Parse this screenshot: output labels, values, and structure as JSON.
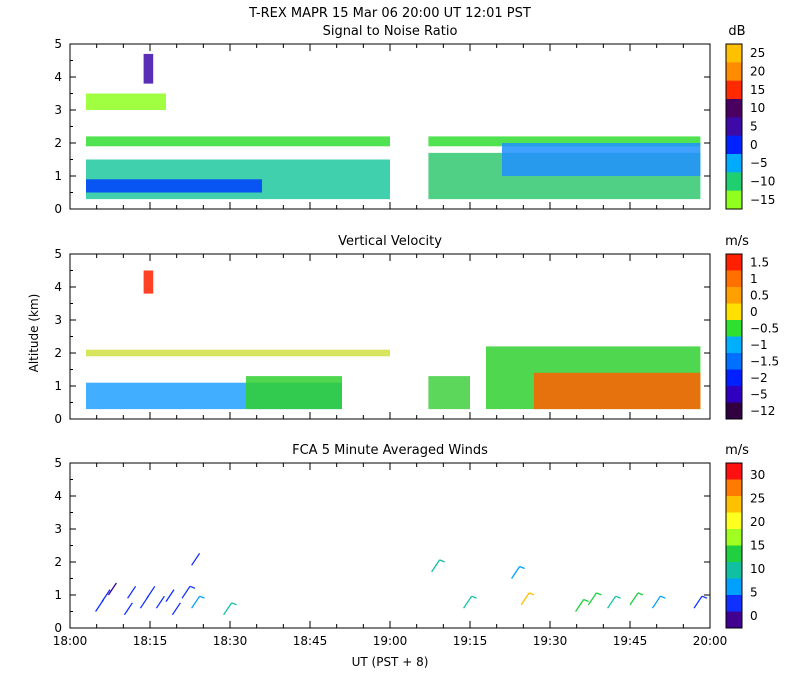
{
  "header": {
    "title": "T-REX   MAPR 15 Mar 06   20:00 UT   12:01   PST"
  },
  "chart_data": [
    {
      "type": "heatmap",
      "title": "Signal to Noise Ratio",
      "ylabel": "",
      "ylim": [
        0,
        5
      ],
      "yticks": [
        "0",
        "1",
        "2",
        "3",
        "4",
        "5"
      ],
      "colorbar_units": "dB",
      "colorbar_labels": [
        "25",
        "20",
        "15",
        "10",
        "5",
        "0",
        "−5",
        "−10",
        "−15"
      ],
      "colorbar_colors": [
        "#ffc000",
        "#ff8c00",
        "#ff2a00",
        "#4a0060",
        "#3d0aa8",
        "#0022ff",
        "#00aaff",
        "#20d070",
        "#90ff20"
      ],
      "bands": [
        {
          "x0": 18.05,
          "x1": 19.0,
          "y0": 1.9,
          "y1": 2.2,
          "color": "#33dd33"
        },
        {
          "x0": 19.12,
          "x1": 19.97,
          "y0": 1.9,
          "y1": 2.2,
          "color": "#33dd33"
        },
        {
          "x0": 18.05,
          "x1": 19.0,
          "y0": 0.3,
          "y1": 1.5,
          "color": "#20c8a0"
        },
        {
          "x0": 18.05,
          "x1": 18.6,
          "y0": 0.5,
          "y1": 0.9,
          "color": "#0040ff"
        },
        {
          "x0": 19.12,
          "x1": 19.97,
          "y0": 0.3,
          "y1": 1.7,
          "color": "#30c870"
        },
        {
          "x0": 19.35,
          "x1": 19.97,
          "y0": 1.0,
          "y1": 2.0,
          "color": "#2090ff"
        },
        {
          "x0": 18.05,
          "x1": 18.3,
          "y0": 3.0,
          "y1": 3.5,
          "color": "#90ff20"
        },
        {
          "x0": 18.23,
          "x1": 18.26,
          "y0": 3.8,
          "y1": 4.7,
          "color": "#3d0aa8"
        }
      ]
    },
    {
      "type": "heatmap",
      "title": "Vertical Velocity",
      "ylabel": "Altitude (km)",
      "ylim": [
        0,
        5
      ],
      "yticks": [
        "0",
        "1",
        "2",
        "3",
        "4",
        "5"
      ],
      "colorbar_units": "m/s",
      "colorbar_labels": [
        "1.5",
        "1",
        "0.5",
        "0",
        "−0.5",
        "−1",
        "−1.5",
        "−2",
        "−5",
        "−12"
      ],
      "colorbar_colors": [
        "#ff2000",
        "#ff7000",
        "#ffa000",
        "#ffe000",
        "#30e030",
        "#00b0ff",
        "#0070ff",
        "#0020ff",
        "#3000c0",
        "#300040"
      ],
      "bands": [
        {
          "x0": 18.05,
          "x1": 19.0,
          "y0": 1.9,
          "y1": 2.1,
          "color": "#d0e040"
        },
        {
          "x0": 18.05,
          "x1": 18.85,
          "y0": 0.3,
          "y1": 1.1,
          "color": "#20a0ff"
        },
        {
          "x0": 18.55,
          "x1": 18.85,
          "y0": 0.3,
          "y1": 1.3,
          "color": "#30d030"
        },
        {
          "x0": 19.12,
          "x1": 19.25,
          "y0": 0.3,
          "y1": 1.3,
          "color": "#40d040"
        },
        {
          "x0": 19.3,
          "x1": 19.97,
          "y0": 0.3,
          "y1": 2.2,
          "color": "#30d030"
        },
        {
          "x0": 19.45,
          "x1": 19.97,
          "y0": 0.3,
          "y1": 1.4,
          "color": "#ff6000"
        },
        {
          "x0": 18.23,
          "x1": 18.26,
          "y0": 3.8,
          "y1": 4.5,
          "color": "#ff2000"
        }
      ]
    },
    {
      "type": "scatter",
      "title": "FCA 5 Minute Averaged Winds",
      "ylabel": "",
      "xlabel": "UT   (PST + 8)",
      "ylim": [
        0,
        5
      ],
      "xlim": [
        18.0,
        20.0
      ],
      "yticks": [
        "0",
        "1",
        "2",
        "3",
        "4",
        "5"
      ],
      "xticks": [
        "18:00",
        "18:15",
        "18:30",
        "18:45",
        "19:00",
        "19:15",
        "19:30",
        "19:45",
        "20:00"
      ],
      "colorbar_units": "m/s",
      "colorbar_labels": [
        "30",
        "25",
        "20",
        "15",
        "10",
        "5",
        "0"
      ],
      "colorbar_colors": [
        "#ff1010",
        "#ff7a00",
        "#ffc000",
        "#ffff20",
        "#a0ff20",
        "#20d040",
        "#10c0a0",
        "#00a0ff",
        "#1030ff",
        "#400090"
      ],
      "barbs": [
        {
          "t": 18.08,
          "z": 0.5,
          "speed": 2
        },
        {
          "t": 18.1,
          "z": 0.8,
          "speed": 2
        },
        {
          "t": 18.12,
          "z": 1.0,
          "speed": 1
        },
        {
          "t": 18.17,
          "z": 0.4,
          "speed": 2
        },
        {
          "t": 18.18,
          "z": 0.9,
          "speed": 3
        },
        {
          "t": 18.22,
          "z": 0.6,
          "speed": 3
        },
        {
          "t": 18.24,
          "z": 0.9,
          "speed": 4
        },
        {
          "t": 18.27,
          "z": 0.6,
          "speed": 3
        },
        {
          "t": 18.3,
          "z": 0.8,
          "speed": 4
        },
        {
          "t": 18.32,
          "z": 0.4,
          "speed": 3
        },
        {
          "t": 18.35,
          "z": 0.9,
          "speed": 5
        },
        {
          "t": 18.38,
          "z": 0.6,
          "speed": 6
        },
        {
          "t": 18.38,
          "z": 1.9,
          "speed": 2
        },
        {
          "t": 18.48,
          "z": 0.4,
          "speed": 11
        },
        {
          "t": 19.13,
          "z": 1.7,
          "speed": 9
        },
        {
          "t": 19.23,
          "z": 0.6,
          "speed": 11
        },
        {
          "t": 19.38,
          "z": 1.5,
          "speed": 7
        },
        {
          "t": 19.41,
          "z": 0.7,
          "speed": 22
        },
        {
          "t": 19.58,
          "z": 0.5,
          "speed": 12
        },
        {
          "t": 19.62,
          "z": 0.7,
          "speed": 12
        },
        {
          "t": 19.68,
          "z": 0.6,
          "speed": 9
        },
        {
          "t": 19.75,
          "z": 0.7,
          "speed": 13
        },
        {
          "t": 19.82,
          "z": 0.6,
          "speed": 6
        },
        {
          "t": 19.95,
          "z": 0.6,
          "speed": 5
        }
      ]
    }
  ]
}
